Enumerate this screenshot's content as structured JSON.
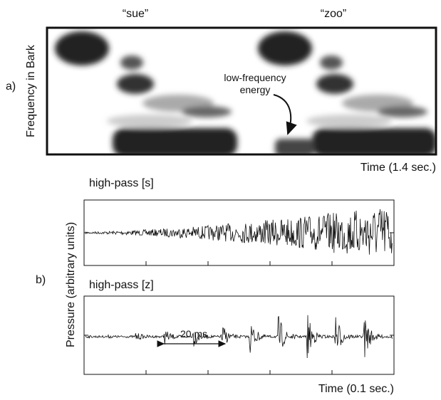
{
  "panel_a": {
    "label": "a)",
    "word_1": "“sue”",
    "word_2": "“zoo”",
    "y_label": "Frequency in Bark",
    "x_label": "Time (1.4 sec.)",
    "annotation": {
      "line_1": "low-frequency",
      "line_2": "energy"
    }
  },
  "panel_b": {
    "label": "b)",
    "y_label": "Pressure (arbitrary units)",
    "top_title": "high-pass [s]",
    "bottom_title": "high-pass [z]",
    "scale_label": "20 ms",
    "x_label": "Time (0.1 sec.)"
  }
}
